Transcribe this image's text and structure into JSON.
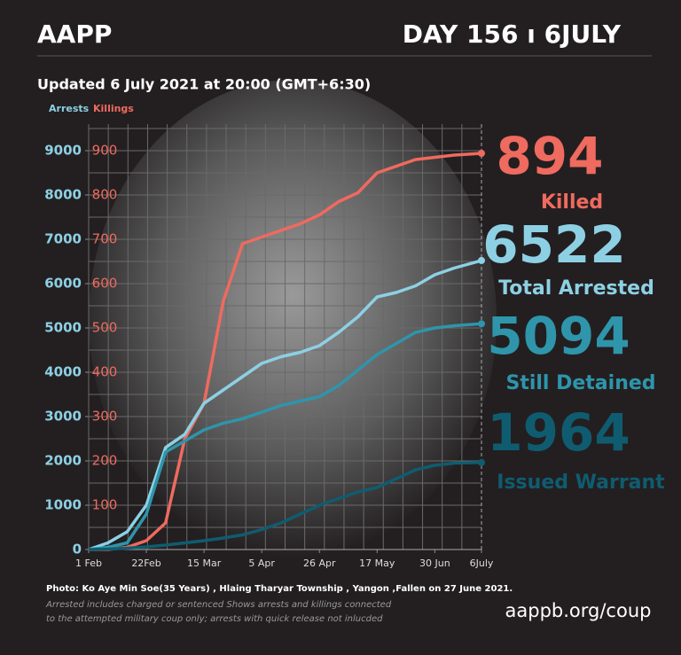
{
  "header": {
    "title": "AAPP",
    "day": "DAY 156 ı 6JULY",
    "updated": "Updated 6 July 2021 at 20:00 (GMT+6:30)"
  },
  "chart_data": {
    "type": "line",
    "y_label": "Arrests",
    "y2_label": "Killings",
    "x": [
      0,
      7,
      14,
      21,
      28,
      35,
      42,
      49,
      56,
      63,
      70,
      77,
      84,
      91,
      98,
      105,
      112,
      119,
      126,
      133,
      143
    ],
    "xlim": [
      0,
      143
    ],
    "xticks": [
      {
        "value": 0,
        "label": "1 Feb"
      },
      {
        "value": 21,
        "label": "22Feb"
      },
      {
        "value": 42,
        "label": "15 Mar"
      },
      {
        "value": 63,
        "label": "5 Apr"
      },
      {
        "value": 84,
        "label": "26 Apr"
      },
      {
        "value": 105,
        "label": "17 May"
      },
      {
        "value": 126,
        "label": "30 Jun"
      },
      {
        "value": 143,
        "label": "6July"
      }
    ],
    "ylim": [
      0,
      9000
    ],
    "yticks": [
      0,
      1000,
      2000,
      3000,
      4000,
      5000,
      6000,
      7000,
      8000,
      9000
    ],
    "y2lim": [
      0,
      900
    ],
    "y2ticks": [
      100,
      200,
      300,
      400,
      500,
      600,
      700,
      800,
      900
    ],
    "grid": true,
    "series": [
      {
        "name": "Killed",
        "color": "#ef6a5f",
        "axis": "y2",
        "values": [
          0,
          0,
          5,
          20,
          60,
          250,
          330,
          560,
          690,
          705,
          720,
          735,
          755,
          785,
          805,
          850,
          865,
          880,
          885,
          890,
          894
        ]
      },
      {
        "name": "Total Arrested",
        "color": "#8dd0e4",
        "values": [
          0,
          150,
          400,
          1000,
          2300,
          2600,
          3300,
          3600,
          3900,
          4200,
          4350,
          4450,
          4600,
          4900,
          5250,
          5700,
          5800,
          5950,
          6200,
          6350,
          6522
        ]
      },
      {
        "name": "Still Detained",
        "color": "#2e95ab",
        "values": [
          0,
          50,
          150,
          800,
          2200,
          2450,
          2700,
          2850,
          2950,
          3100,
          3250,
          3350,
          3450,
          3700,
          4050,
          4400,
          4650,
          4900,
          5000,
          5050,
          5094
        ]
      },
      {
        "name": "Issued Warrant",
        "color": "#0f5c70",
        "values": [
          0,
          10,
          30,
          60,
          100,
          150,
          200,
          260,
          330,
          450,
          600,
          800,
          1000,
          1150,
          1300,
          1400,
          1600,
          1800,
          1900,
          1950,
          1964
        ]
      }
    ]
  },
  "footer": {
    "photo": "Photo:  Ko Aye Min Soe(35 Years) ,  Hlaing Tharyar Township  , Yangon ,Fallen on 27 June 2021.",
    "note": [
      "Arrested includes charged or sentenced Shows arrests and killings connected",
      "to the attempted military coup only; arrests with quick release not inlucded"
    ],
    "url": "aappb.org/coup"
  }
}
